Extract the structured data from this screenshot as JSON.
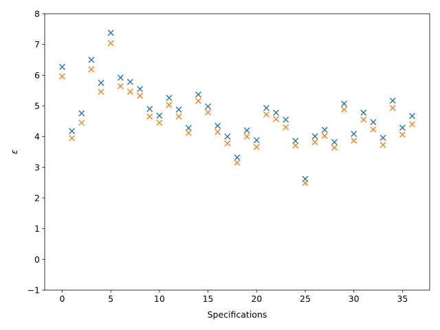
{
  "chart_data": {
    "type": "scatter",
    "xlabel": "Specifications",
    "ylabel": "ε",
    "xlim": [
      -1.8,
      37.8
    ],
    "ylim": [
      -1,
      8
    ],
    "xticks": [
      0,
      5,
      10,
      15,
      20,
      25,
      30,
      35
    ],
    "yticks": [
      -1,
      0,
      1,
      2,
      3,
      4,
      5,
      6,
      7,
      8
    ],
    "grid": false,
    "legend": "none",
    "marker": "x",
    "x": [
      0,
      1,
      2,
      3,
      4,
      5,
      6,
      7,
      8,
      9,
      10,
      11,
      12,
      13,
      14,
      15,
      16,
      17,
      18,
      19,
      20,
      21,
      22,
      23,
      24,
      25,
      26,
      27,
      28,
      29,
      30,
      31,
      32,
      33,
      34,
      35,
      36
    ],
    "series": [
      {
        "color": "#1f77b4",
        "values": [
          6.27,
          4.18,
          4.76,
          6.5,
          5.75,
          7.38,
          5.92,
          5.78,
          5.55,
          4.9,
          4.68,
          5.26,
          4.88,
          4.28,
          5.37,
          4.98,
          4.35,
          4.0,
          3.32,
          4.2,
          3.88,
          4.93,
          4.78,
          4.55,
          3.86,
          2.62,
          4.01,
          4.22,
          3.82,
          5.07,
          4.09,
          4.78,
          4.47,
          3.96,
          5.17,
          4.29,
          4.67
        ]
      },
      {
        "color": "#ff7f0e",
        "values": [
          5.96,
          3.95,
          4.45,
          6.19,
          5.46,
          7.04,
          5.64,
          5.46,
          5.33,
          4.65,
          4.45,
          5.03,
          4.65,
          4.12,
          5.16,
          4.79,
          4.15,
          3.78,
          3.15,
          4.0,
          3.66,
          4.72,
          4.57,
          4.3,
          3.71,
          2.49,
          3.82,
          4.02,
          3.64,
          4.88,
          3.87,
          4.55,
          4.23,
          3.73,
          4.93,
          4.06,
          4.4
        ]
      }
    ]
  }
}
